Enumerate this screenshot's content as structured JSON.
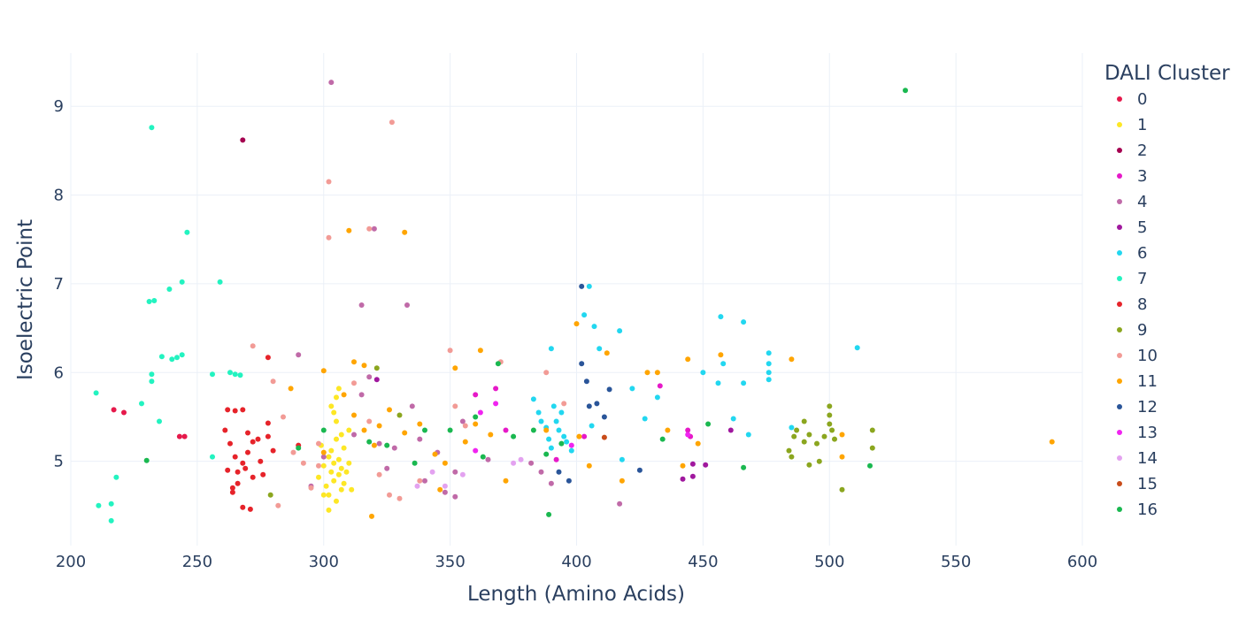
{
  "chart_data": {
    "type": "scatter",
    "xlabel": "Length (Amino Acids)",
    "ylabel": "Isoelectric Point",
    "xlim": [
      200,
      600
    ],
    "ylim": [
      4.05,
      9.6
    ],
    "xticks": [
      "200",
      "250",
      "300",
      "350",
      "400",
      "450",
      "500",
      "550",
      "600"
    ],
    "yticks": [
      "5",
      "6",
      "7",
      "8",
      "9"
    ],
    "grid": true,
    "legend": {
      "title": "DALI Cluster",
      "position": "right"
    },
    "series": [
      {
        "name": "0",
        "color": "#e6194b",
        "points": [
          [
            217,
            5.58
          ],
          [
            221,
            5.55
          ],
          [
            243,
            5.28
          ],
          [
            245,
            5.28
          ]
        ]
      },
      {
        "name": "1",
        "color": "#fde725",
        "points": [
          [
            298,
            4.82
          ],
          [
            300,
            4.95
          ],
          [
            301,
            4.72
          ],
          [
            302,
            5.05
          ],
          [
            302,
            4.62
          ],
          [
            303,
            4.88
          ],
          [
            303,
            5.12
          ],
          [
            304,
            4.78
          ],
          [
            304,
            4.98
          ],
          [
            305,
            5.25
          ],
          [
            305,
            4.55
          ],
          [
            306,
            4.85
          ],
          [
            306,
            5.02
          ],
          [
            307,
            4.68
          ],
          [
            307,
            4.92
          ],
          [
            308,
            5.15
          ],
          [
            308,
            4.75
          ],
          [
            309,
            4.88
          ],
          [
            310,
            5.35
          ],
          [
            310,
            4.98
          ],
          [
            303,
            5.62
          ],
          [
            305,
            5.45
          ],
          [
            306,
            5.82
          ],
          [
            304,
            5.55
          ],
          [
            311,
            4.68
          ],
          [
            302,
            4.45
          ],
          [
            300,
            4.62
          ],
          [
            299,
            5.18
          ],
          [
            307,
            5.3
          ],
          [
            305,
            5.72
          ]
        ]
      },
      {
        "name": "2",
        "color": "#a50050",
        "points": [
          [
            268,
            8.62
          ]
        ]
      },
      {
        "name": "3",
        "color": "#e619c8",
        "points": [
          [
            360,
            5.75
          ],
          [
            368,
            5.82
          ],
          [
            372,
            5.35
          ],
          [
            392,
            5.02
          ],
          [
            403,
            5.28
          ],
          [
            433,
            5.85
          ],
          [
            444,
            5.35
          ],
          [
            445,
            5.28
          ]
        ]
      },
      {
        "name": "4",
        "color": "#c06aa8",
        "points": [
          [
            303,
            9.27
          ],
          [
            318,
            5.95
          ],
          [
            320,
            7.62
          ],
          [
            315,
            6.76
          ],
          [
            333,
            6.76
          ],
          [
            290,
            6.2
          ],
          [
            312,
            5.3
          ],
          [
            322,
            5.2
          ],
          [
            335,
            5.62
          ],
          [
            345,
            5.1
          ],
          [
            352,
            4.88
          ],
          [
            355,
            5.45
          ],
          [
            365,
            5.02
          ],
          [
            315,
            5.75
          ],
          [
            328,
            5.15
          ],
          [
            340,
            4.78
          ],
          [
            348,
            4.65
          ],
          [
            352,
            4.6
          ],
          [
            382,
            4.98
          ],
          [
            386,
            4.88
          ],
          [
            390,
            4.75
          ],
          [
            417,
            4.52
          ],
          [
            300,
            5.05
          ],
          [
            295,
            4.72
          ],
          [
            325,
            4.92
          ],
          [
            338,
            5.25
          ]
        ]
      },
      {
        "name": "5",
        "color": "#a0189e",
        "points": [
          [
            442,
            4.8
          ],
          [
            446,
            4.83
          ],
          [
            446,
            4.97
          ],
          [
            451,
            4.96
          ],
          [
            461,
            5.35
          ],
          [
            321,
            5.92
          ]
        ]
      },
      {
        "name": "6",
        "color": "#22d7f0",
        "points": [
          [
            383,
            5.7
          ],
          [
            385,
            5.55
          ],
          [
            386,
            5.45
          ],
          [
            388,
            5.38
          ],
          [
            389,
            5.25
          ],
          [
            390,
            5.15
          ],
          [
            391,
            5.62
          ],
          [
            392,
            5.45
          ],
          [
            393,
            5.35
          ],
          [
            394,
            5.55
          ],
          [
            395,
            5.28
          ],
          [
            396,
            5.22
          ],
          [
            390,
            6.27
          ],
          [
            403,
            6.65
          ],
          [
            405,
            6.97
          ],
          [
            407,
            6.52
          ],
          [
            409,
            6.27
          ],
          [
            417,
            6.47
          ],
          [
            422,
            5.82
          ],
          [
            427,
            5.48
          ],
          [
            432,
            5.72
          ],
          [
            450,
            6.0
          ],
          [
            456,
            5.88
          ],
          [
            457,
            6.63
          ],
          [
            458,
            6.1
          ],
          [
            462,
            5.48
          ],
          [
            466,
            5.88
          ],
          [
            466,
            6.57
          ],
          [
            468,
            5.3
          ],
          [
            476,
            6.22
          ],
          [
            476,
            6.1
          ],
          [
            476,
            6.0
          ],
          [
            476,
            5.92
          ],
          [
            485,
            5.38
          ],
          [
            511,
            6.28
          ],
          [
            406,
            5.4
          ],
          [
            418,
            5.02
          ],
          [
            398,
            5.12
          ]
        ]
      },
      {
        "name": "7",
        "color": "#23f3c0",
        "points": [
          [
            210,
            5.77
          ],
          [
            211,
            4.5
          ],
          [
            216,
            4.52
          ],
          [
            216,
            4.33
          ],
          [
            218,
            4.82
          ],
          [
            228,
            5.65
          ],
          [
            232,
            8.76
          ],
          [
            232,
            5.98
          ],
          [
            232,
            5.9
          ],
          [
            231,
            6.8
          ],
          [
            233,
            6.81
          ],
          [
            235,
            5.45
          ],
          [
            236,
            6.18
          ],
          [
            239,
            6.94
          ],
          [
            240,
            6.15
          ],
          [
            242,
            6.17
          ],
          [
            244,
            7.02
          ],
          [
            244,
            6.2
          ],
          [
            246,
            7.58
          ],
          [
            256,
            5.05
          ],
          [
            256,
            5.98
          ],
          [
            259,
            7.02
          ],
          [
            263,
            6.0
          ],
          [
            265,
            5.98
          ],
          [
            267,
            5.97
          ]
        ]
      },
      {
        "name": "8",
        "color": "#e6232a",
        "points": [
          [
            262,
            5.58
          ],
          [
            265,
            5.57
          ],
          [
            268,
            5.58
          ],
          [
            261,
            5.35
          ],
          [
            263,
            5.2
          ],
          [
            265,
            5.05
          ],
          [
            266,
            4.88
          ],
          [
            264,
            4.7
          ],
          [
            268,
            4.98
          ],
          [
            270,
            5.1
          ],
          [
            272,
            4.82
          ],
          [
            274,
            5.25
          ],
          [
            275,
            5.0
          ],
          [
            276,
            4.85
          ],
          [
            278,
            5.28
          ],
          [
            280,
            5.12
          ],
          [
            262,
            4.9
          ],
          [
            266,
            4.75
          ],
          [
            268,
            4.48
          ],
          [
            271,
            4.46
          ],
          [
            278,
            6.17
          ],
          [
            278,
            5.43
          ],
          [
            290,
            5.18
          ],
          [
            264,
            4.65
          ],
          [
            270,
            5.32
          ],
          [
            272,
            5.22
          ],
          [
            269,
            4.92
          ]
        ]
      },
      {
        "name": "9",
        "color": "#8ba61f",
        "points": [
          [
            484,
            5.12
          ],
          [
            485,
            5.05
          ],
          [
            486,
            5.28
          ],
          [
            487,
            5.35
          ],
          [
            490,
            5.45
          ],
          [
            490,
            5.22
          ],
          [
            492,
            5.3
          ],
          [
            495,
            5.2
          ],
          [
            498,
            5.28
          ],
          [
            500,
            5.62
          ],
          [
            500,
            5.52
          ],
          [
            500,
            5.42
          ],
          [
            501,
            5.35
          ],
          [
            502,
            5.25
          ],
          [
            505,
            4.68
          ],
          [
            517,
            5.35
          ],
          [
            517,
            5.15
          ],
          [
            321,
            6.05
          ],
          [
            330,
            5.52
          ],
          [
            279,
            4.62
          ],
          [
            492,
            4.96
          ],
          [
            496,
            5.0
          ]
        ]
      },
      {
        "name": "10",
        "color": "#f29b96",
        "points": [
          [
            302,
            8.15
          ],
          [
            302,
            7.52
          ],
          [
            327,
            8.82
          ],
          [
            318,
            7.62
          ],
          [
            272,
            6.3
          ],
          [
            280,
            5.9
          ],
          [
            284,
            5.5
          ],
          [
            288,
            5.1
          ],
          [
            292,
            4.98
          ],
          [
            295,
            4.7
          ],
          [
            298,
            5.2
          ],
          [
            312,
            5.88
          ],
          [
            318,
            5.45
          ],
          [
            322,
            4.85
          ],
          [
            326,
            4.62
          ],
          [
            330,
            4.58
          ],
          [
            338,
            4.78
          ],
          [
            350,
            6.25
          ],
          [
            352,
            5.62
          ],
          [
            356,
            5.4
          ],
          [
            370,
            6.12
          ],
          [
            388,
            6.0
          ],
          [
            395,
            5.65
          ],
          [
            298,
            4.95
          ],
          [
            282,
            4.5
          ]
        ]
      },
      {
        "name": "11",
        "color": "#ffa500",
        "points": [
          [
            310,
            7.6
          ],
          [
            332,
            7.58
          ],
          [
            312,
            6.12
          ],
          [
            316,
            6.08
          ],
          [
            300,
            6.02
          ],
          [
            308,
            5.75
          ],
          [
            312,
            5.52
          ],
          [
            316,
            5.35
          ],
          [
            320,
            5.18
          ],
          [
            322,
            5.4
          ],
          [
            326,
            5.58
          ],
          [
            332,
            5.32
          ],
          [
            338,
            5.42
          ],
          [
            344,
            5.08
          ],
          [
            348,
            4.98
          ],
          [
            352,
            6.05
          ],
          [
            356,
            5.22
          ],
          [
            360,
            5.42
          ],
          [
            362,
            6.25
          ],
          [
            366,
            5.3
          ],
          [
            388,
            5.35
          ],
          [
            400,
            6.55
          ],
          [
            401,
            5.28
          ],
          [
            405,
            4.95
          ],
          [
            412,
            6.22
          ],
          [
            418,
            4.78
          ],
          [
            428,
            6.0
          ],
          [
            432,
            6.0
          ],
          [
            436,
            5.35
          ],
          [
            442,
            4.95
          ],
          [
            444,
            6.15
          ],
          [
            448,
            5.2
          ],
          [
            457,
            6.2
          ],
          [
            485,
            6.15
          ],
          [
            505,
            5.3
          ],
          [
            505,
            5.05
          ],
          [
            588,
            5.22
          ],
          [
            300,
            5.1
          ],
          [
            287,
            5.82
          ],
          [
            319,
            4.38
          ],
          [
            346,
            4.68
          ],
          [
            372,
            4.78
          ]
        ]
      },
      {
        "name": "12",
        "color": "#2a5599",
        "points": [
          [
            402,
            6.97
          ],
          [
            402,
            6.1
          ],
          [
            404,
            5.9
          ],
          [
            405,
            5.62
          ],
          [
            408,
            5.65
          ],
          [
            411,
            5.5
          ],
          [
            413,
            5.81
          ],
          [
            425,
            4.9
          ],
          [
            397,
            4.78
          ],
          [
            393,
            4.88
          ]
        ]
      },
      {
        "name": "13",
        "color": "#f024f0",
        "points": [
          [
            362,
            5.55
          ],
          [
            368,
            5.65
          ],
          [
            398,
            5.18
          ],
          [
            444,
            5.3
          ],
          [
            360,
            5.12
          ]
        ]
      },
      {
        "name": "14",
        "color": "#e3a2f0",
        "points": [
          [
            348,
            4.72
          ],
          [
            355,
            4.85
          ],
          [
            375,
            4.98
          ],
          [
            378,
            5.02
          ],
          [
            337,
            4.72
          ],
          [
            343,
            4.88
          ]
        ]
      },
      {
        "name": "15",
        "color": "#c84c1a",
        "points": [
          [
            411,
            5.27
          ]
        ]
      },
      {
        "name": "16",
        "color": "#1ab850",
        "points": [
          [
            530,
            9.18
          ],
          [
            230,
            5.01
          ],
          [
            290,
            5.15
          ],
          [
            300,
            5.35
          ],
          [
            318,
            5.22
          ],
          [
            325,
            5.18
          ],
          [
            340,
            5.35
          ],
          [
            360,
            5.5
          ],
          [
            363,
            5.05
          ],
          [
            369,
            6.1
          ],
          [
            375,
            5.28
          ],
          [
            383,
            5.35
          ],
          [
            388,
            5.08
          ],
          [
            389,
            4.4
          ],
          [
            394,
            5.2
          ],
          [
            466,
            4.93
          ],
          [
            516,
            4.95
          ],
          [
            452,
            5.42
          ],
          [
            434,
            5.25
          ],
          [
            350,
            5.35
          ],
          [
            336,
            4.98
          ]
        ]
      }
    ]
  }
}
